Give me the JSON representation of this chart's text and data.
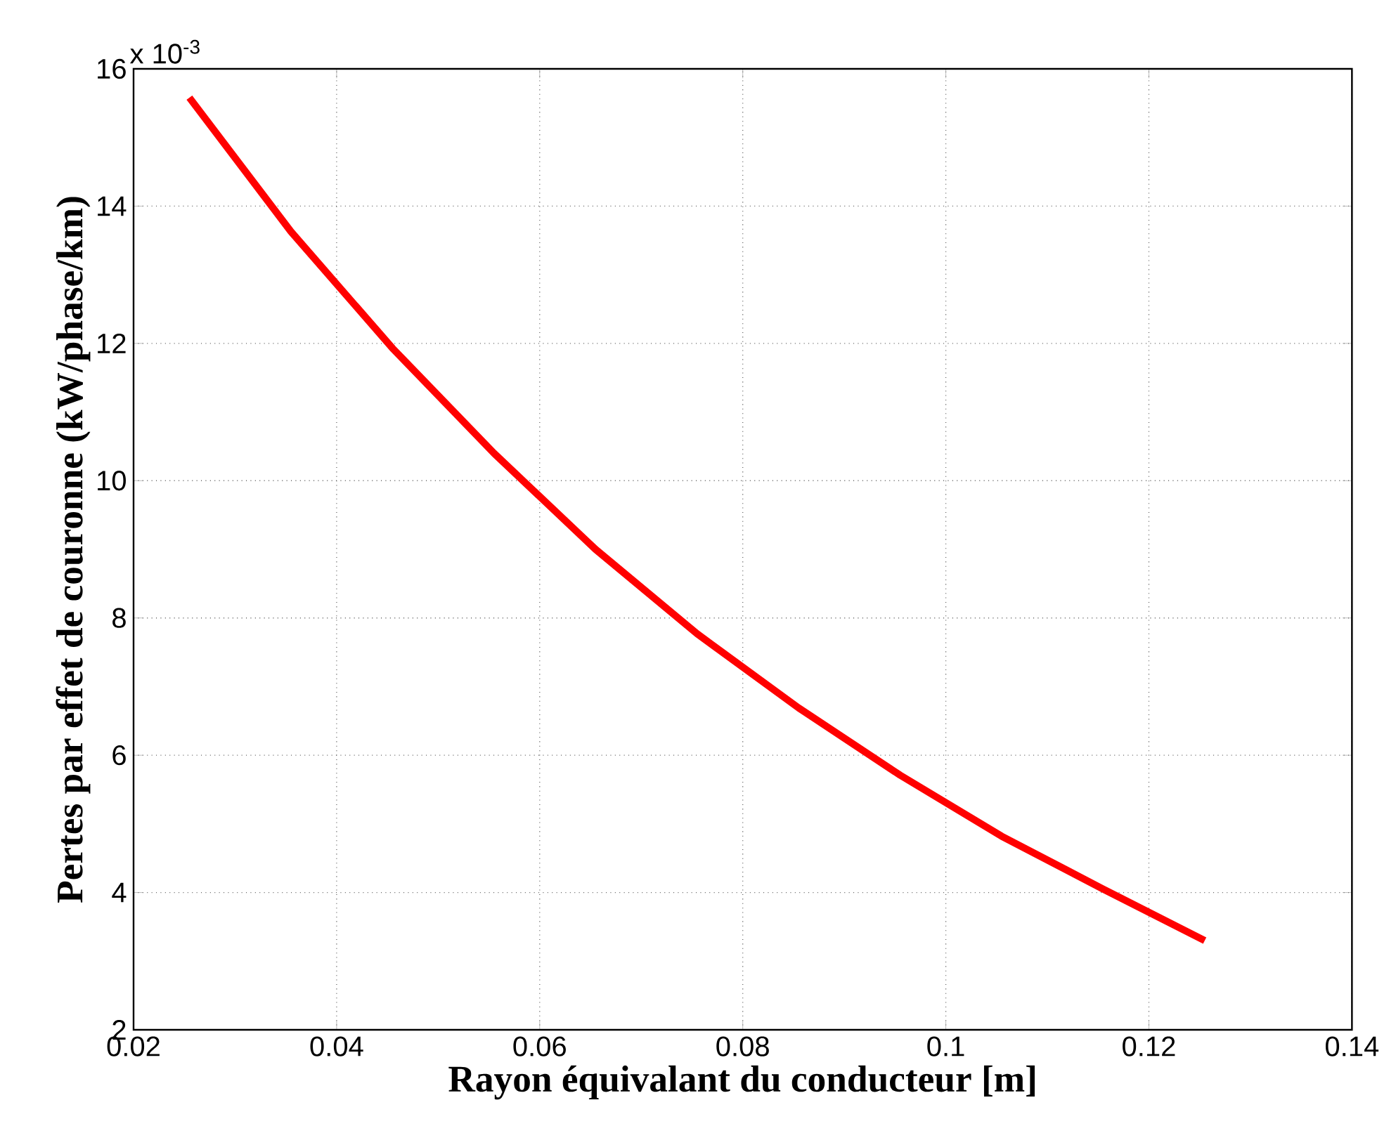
{
  "chart_data": {
    "type": "line",
    "xlabel": "Rayon équivalant du conducteur [m]",
    "ylabel": "Pertes par effet de couronne (kW/phase/km)",
    "annotations": [
      "x 10$^{-3}$"
    ],
    "x": [
      0.0255,
      0.0355,
      0.0455,
      0.0555,
      0.0655,
      0.0755,
      0.0855,
      0.0955,
      0.1055,
      0.1155,
      0.1255
    ],
    "series": [
      {
        "color": "#ff0000",
        "values": [
          15.58,
          13.63,
          11.93,
          10.4,
          9.0,
          7.77,
          6.69,
          5.71,
          4.82,
          4.05,
          3.3
        ]
      }
    ],
    "xlim": [
      0.02,
      0.14
    ],
    "ylim": [
      2,
      16
    ],
    "xticks": [
      0.02,
      0.04,
      0.06,
      0.08,
      0.1,
      0.12,
      0.14
    ],
    "yticks": [
      2,
      4,
      6,
      8,
      10,
      12,
      14,
      16
    ],
    "grid": true,
    "line_style": "solid"
  }
}
